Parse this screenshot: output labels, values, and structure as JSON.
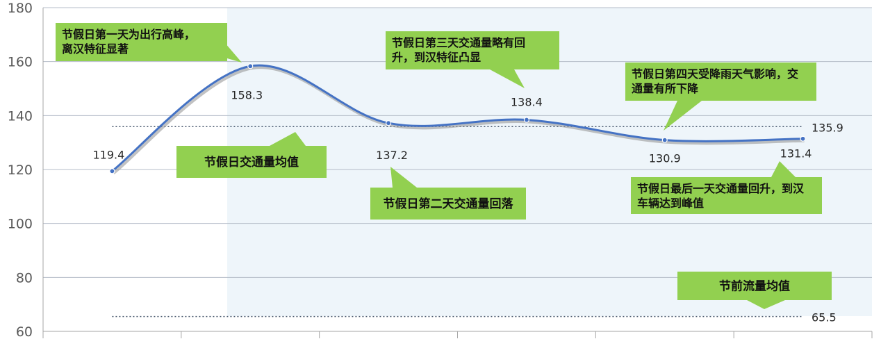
{
  "chart_data": {
    "type": "line",
    "categories": [
      "",
      "",
      "",
      "",
      "",
      ""
    ],
    "series": [
      {
        "values": [
          119.4,
          158.3,
          137.2,
          138.4,
          130.9,
          131.4
        ],
        "color": "#4472c4"
      }
    ],
    "value_labels": [
      "119.4",
      "158.3",
      "137.2",
      "138.4",
      "130.9",
      "131.4"
    ],
    "ylim": [
      60,
      180
    ],
    "yticks": [
      "60",
      "80",
      "100",
      "120",
      "140",
      "160",
      "180"
    ],
    "grid": true,
    "reference_lines": [
      {
        "value": 135.9,
        "label": "135.9"
      },
      {
        "value": 65.5,
        "label": "65.5"
      }
    ],
    "annotations": [
      {
        "lines": [
          "节假日第一天为出行高峰，",
          "离汉特征显著"
        ]
      },
      {
        "lines": [
          "节假日交通量均值"
        ]
      },
      {
        "lines": [
          "节假日第二天交通量回落"
        ]
      },
      {
        "lines": [
          "节假日第三天交通量略有回",
          "升，到汉特征凸显"
        ]
      },
      {
        "lines": [
          "节假日第四天受降雨天气影响，交",
          "通量有所下降"
        ]
      },
      {
        "lines": [
          "节假日最后一天交通量回升，到汉",
          "车辆达到峰值"
        ]
      },
      {
        "lines": [
          "节前流量均值"
        ]
      }
    ],
    "colors": {
      "callout": "#92d050",
      "line": "#4472c4",
      "shade": "#eef5fa"
    }
  }
}
